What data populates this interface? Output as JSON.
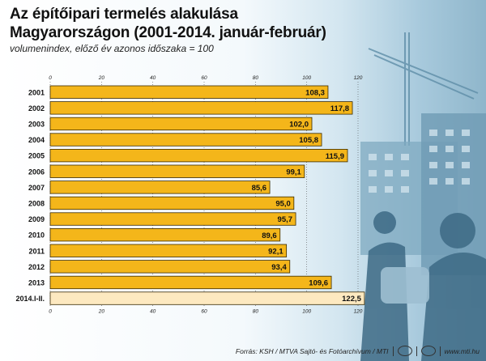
{
  "chart_data": {
    "type": "bar",
    "orientation": "horizontal",
    "title": "Az építőipari termelés alakulása Magyarországon (2001-2014. január-február)",
    "subtitle": "volumenindex, előző év azonos időszaka = 100",
    "categories": [
      "2001",
      "2002",
      "2003",
      "2004",
      "2005",
      "2006",
      "2007",
      "2008",
      "2009",
      "2010",
      "2011",
      "2012",
      "2013",
      "2014.I-II."
    ],
    "values": [
      108.3,
      117.8,
      102.0,
      105.8,
      115.9,
      99.1,
      85.6,
      95.0,
      95.7,
      89.6,
      92.1,
      93.4,
      109.6,
      122.5
    ],
    "value_labels": [
      "108,3",
      "117,8",
      "102,0",
      "105,8",
      "115,9",
      "99,1",
      "85,6",
      "95,0",
      "95,7",
      "89,6",
      "92,1",
      "93,4",
      "109,6",
      "122,5"
    ],
    "xlim": [
      0,
      120
    ],
    "xticks": [
      "0",
      "20",
      "40",
      "60",
      "80",
      "100",
      "120"
    ],
    "xlabel": "",
    "ylabel": "",
    "colors": {
      "bar": "#f4b61a",
      "highlight_bar": "#fde9c0",
      "border": "#3a2a00"
    }
  },
  "footer": {
    "source": "Forrás: KSH / MTVA Sajtó- és Fotóarchívum / MTI",
    "website": "www.mti.hu"
  }
}
